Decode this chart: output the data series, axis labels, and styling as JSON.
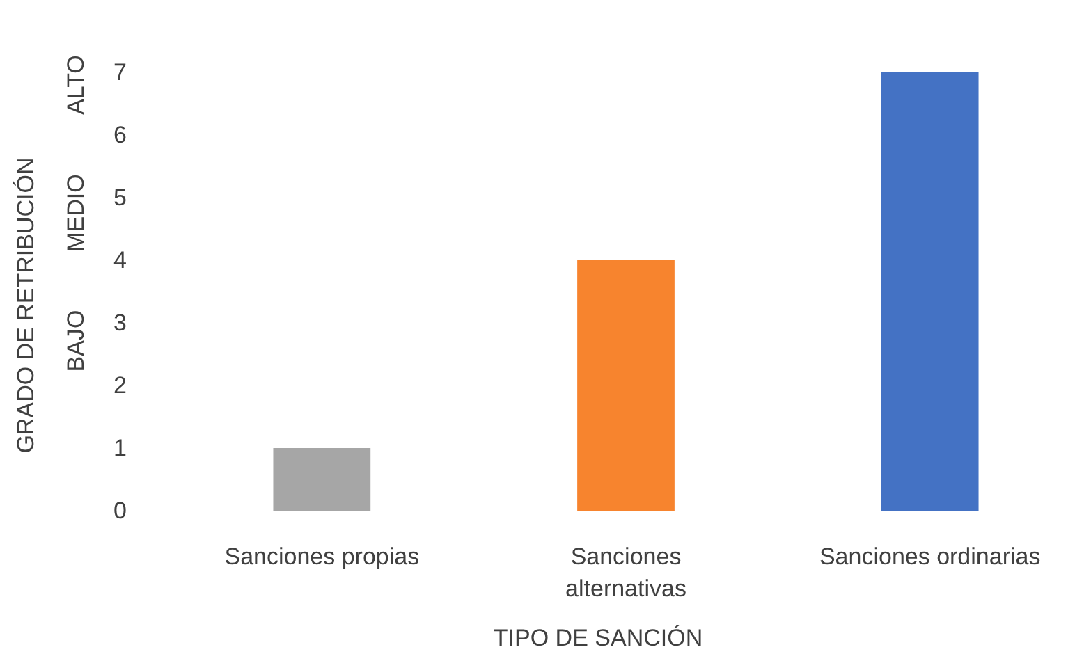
{
  "chart_data": {
    "type": "bar",
    "xlabel": "TIPO DE SANCIÓN",
    "ylabel": "GRADO DE RETRIBUCIÓN",
    "categories": [
      "Sanciones propias",
      "Sanciones alternativas",
      "Sanciones ordinarias"
    ],
    "values": [
      1,
      4,
      7
    ],
    "colors": [
      "#a6a6a6",
      "#f7842e",
      "#4472c4"
    ],
    "ylim": [
      0,
      7
    ],
    "yticks": [
      0,
      1,
      2,
      3,
      4,
      5,
      6,
      7
    ],
    "grid": false,
    "annotations": [
      "BAJO",
      "MEDIO",
      "ALTO"
    ]
  }
}
